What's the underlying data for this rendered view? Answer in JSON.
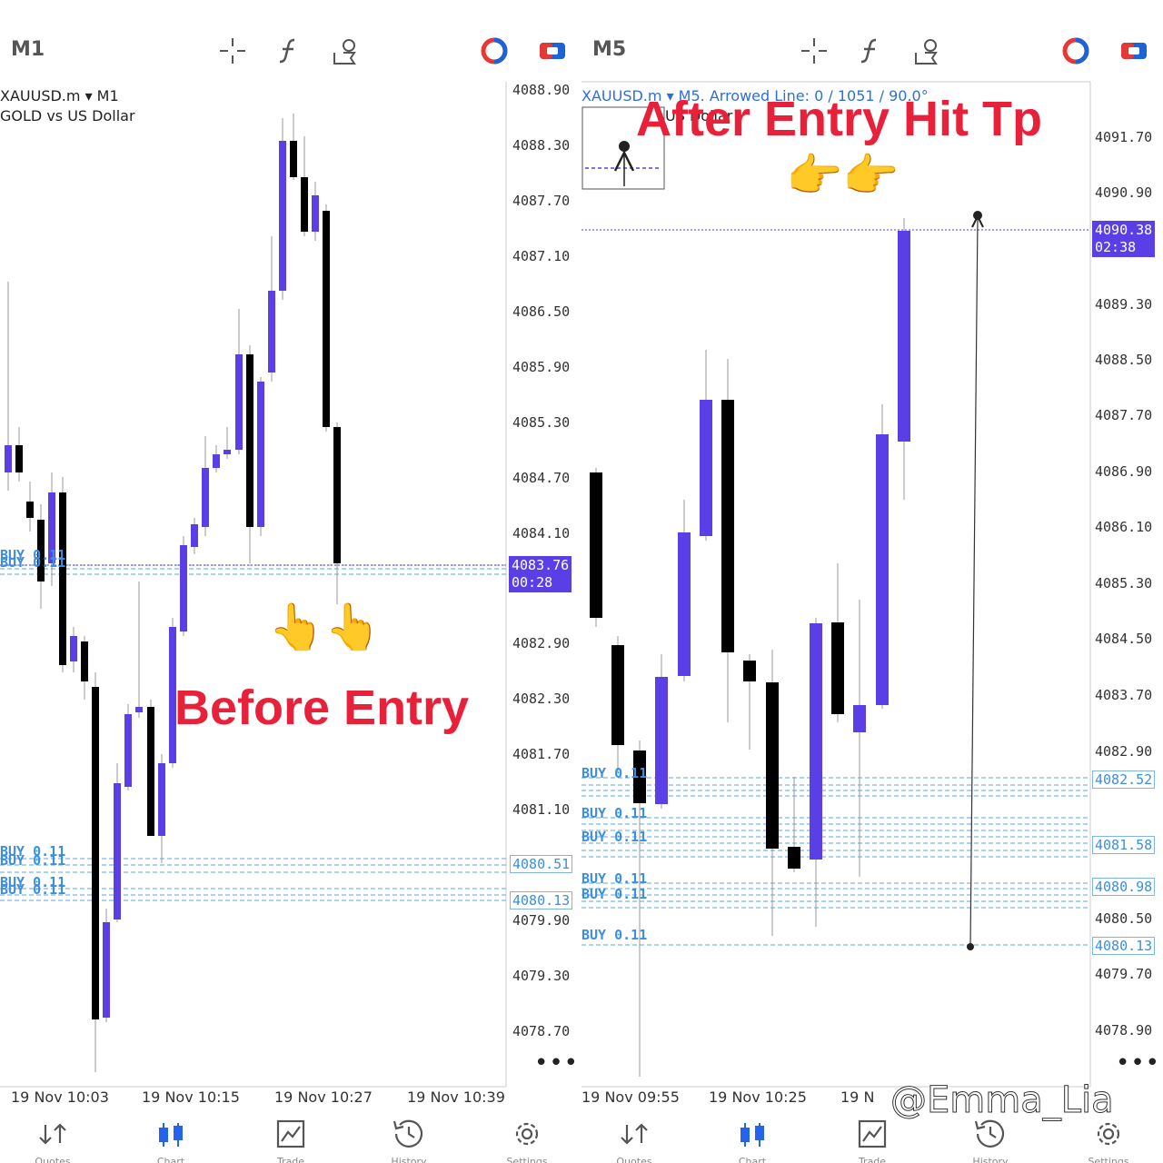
{
  "left": {
    "timeframe": "M1",
    "symbol": "XAUUSD.m ▾ M1",
    "description": "GOLD vs US Dollar",
    "price_axis": [
      "4088.90",
      "4088.30",
      "4087.70",
      "4087.10",
      "4086.50",
      "4085.90",
      "4085.30",
      "4084.70",
      "4084.10",
      "4082.90",
      "4082.30",
      "4081.70",
      "4081.10",
      "4079.90",
      "4079.30",
      "4078.70"
    ],
    "current_price": "4083.76",
    "countdown": "00:28",
    "buy_prices": [
      "4080.51",
      "4080.13"
    ],
    "buy_labels": [
      "BUY 0.11",
      "BUY 0.11",
      "BUY 0.11",
      "BUY 0.11",
      "BUY 0.11",
      "BUY 0.11"
    ],
    "time_axis": [
      "19 Nov 10:03",
      "19 Nov 10:15",
      "19 Nov 10:27",
      "19 Nov 10:39"
    ],
    "annotation": "Before Entry",
    "emoji": "👆👆"
  },
  "right": {
    "timeframe": "M5",
    "symbol": "XAUUSD.m ▾ M5. Arrowed Line: 0 / 1051 / 90.0°",
    "description": "US Dollar",
    "price_axis": [
      "4091.70",
      "4090.90",
      "4089.30",
      "4088.50",
      "4087.70",
      "4086.90",
      "4086.10",
      "4085.30",
      "4084.50",
      "4083.70",
      "4082.90",
      "4080.50",
      "4079.70",
      "4078.90"
    ],
    "current_price": "4090.38",
    "countdown": "02:38",
    "buy_prices": [
      "4082.52",
      "4081.58",
      "4080.98",
      "4080.13"
    ],
    "buy_labels": [
      "BUY 0.11",
      "BUY 0.11",
      "BUY 0.11",
      "BUY 0.11",
      "BUY 0.11",
      "BUY 0.11"
    ],
    "time_axis": [
      "19 Nov 09:55",
      "19 Nov 10:25",
      "19 N"
    ],
    "annotation": "After Entry Hit Tp",
    "emoji": "👉👉"
  },
  "nav": [
    "Quotes",
    "Chart",
    "Trade",
    "History",
    "Settings"
  ],
  "watermark": "@Emma_Lia",
  "colors": {
    "bull": "#5a3fe6",
    "bear": "#000000",
    "annotation": "#e8213a",
    "buy_line": "#7fb4ea"
  }
}
